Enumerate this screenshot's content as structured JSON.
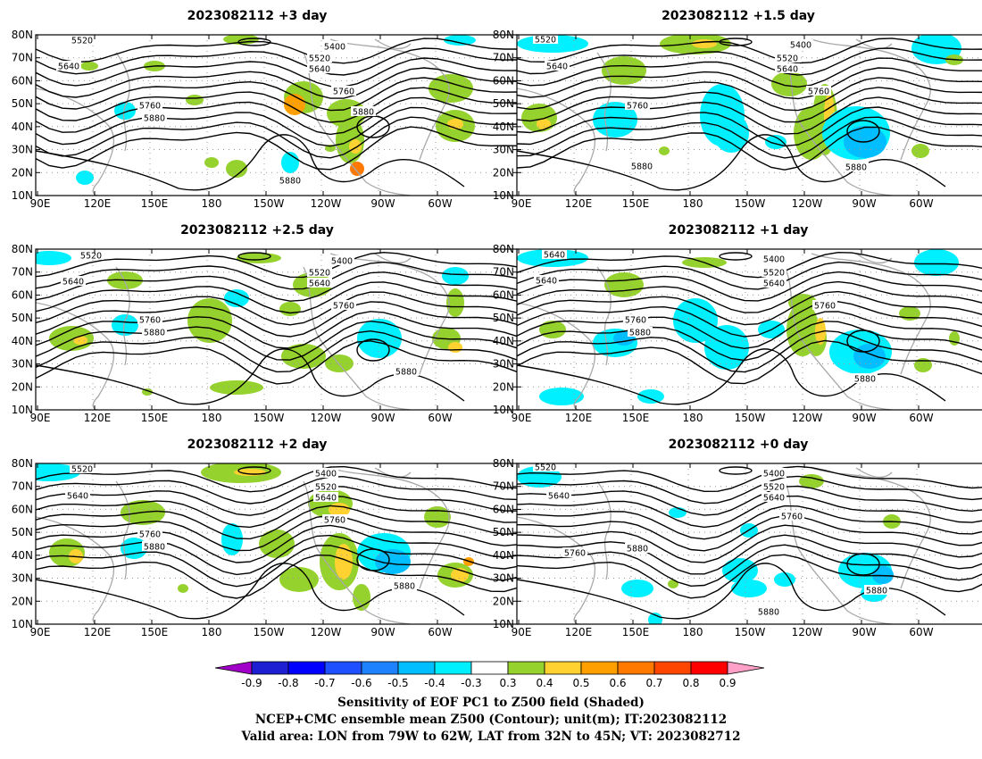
{
  "panels": [
    {
      "id": "p1",
      "title": "2023082112  +3 day"
    },
    {
      "id": "p2",
      "title": "2023082112  +1.5 day"
    },
    {
      "id": "p3",
      "title": "2023082112  +2.5 day"
    },
    {
      "id": "p4",
      "title": "2023082112  +1 day"
    },
    {
      "id": "p5",
      "title": "2023082112  +2 day"
    },
    {
      "id": "p6",
      "title": "2023082112  +0 day"
    }
  ],
  "lat_labels": [
    "10N",
    "20N",
    "30N",
    "40N",
    "50N",
    "60N",
    "70N",
    "80N"
  ],
  "lon_labels": [
    "90E",
    "120E",
    "150E",
    "180",
    "150W",
    "120W",
    "90W",
    "60W"
  ],
  "contour_levels": [
    "5400",
    "5520",
    "5640",
    "5760",
    "5880"
  ],
  "colorbar": {
    "tick_labels": [
      "-0.9",
      "-0.8",
      "-0.7",
      "-0.6",
      "-0.5",
      "-0.4",
      "-0.3",
      "0.3",
      "0.4",
      "0.5",
      "0.6",
      "0.7",
      "0.8",
      "0.9"
    ],
    "colors": [
      "#a000c8",
      "#1e1ed2",
      "#0000ff",
      "#1e50ff",
      "#1e82ff",
      "#00beff",
      "#00f0ff",
      "#ffffff",
      "#96d22d",
      "#ffd232",
      "#ffa000",
      "#ff7800",
      "#ff4600",
      "#ff0000",
      "#ffa0c8"
    ]
  },
  "caption": {
    "line1": "Sensitivity of EOF PC1 to Z500 field (Shaded)",
    "line2": "NCEP+CMC ensemble mean Z500 (Contour); unit(m); IT:2023082112",
    "line3": "Valid area: LON from 79W to 62W, LAT from 32N to 45N; VT: 2023082712"
  }
}
